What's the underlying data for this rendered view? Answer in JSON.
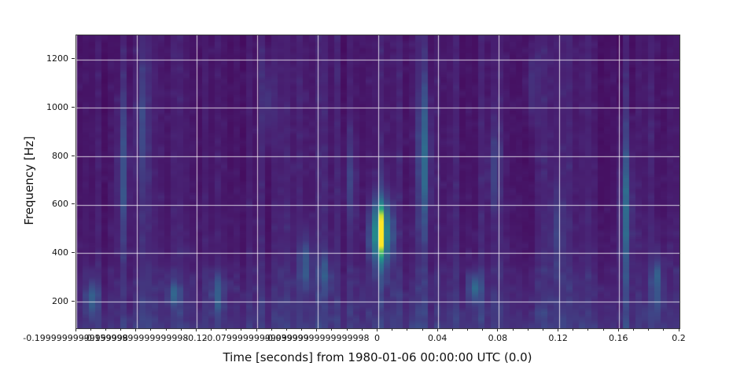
{
  "page": {
    "background": "#ffffff"
  },
  "axes_style": {
    "tick_color": "#2b2b2b",
    "spine_color": "#3b3b3b",
    "label_color": "#111111",
    "grid_color": "#ffffff",
    "grid_opacity": 0.78
  },
  "chart_data": {
    "type": "heatmap",
    "subtype": "spectrogram",
    "title": "",
    "xlabel": "Time [seconds] from 1980-01-06 00:00:00 UTC (0.0)",
    "ylabel": "Frequency [Hz]",
    "xlim": [
      -0.2,
      0.2
    ],
    "ylim": [
      90,
      1300
    ],
    "grid": true,
    "legend": "none",
    "colormap": "viridis",
    "colormap_stops": [
      "#440154",
      "#482475",
      "#3e4a89",
      "#31688e",
      "#26828e",
      "#1fa187",
      "#35b779",
      "#90d743",
      "#fde725"
    ],
    "xticks": {
      "values": [
        -0.2,
        -0.16,
        -0.12,
        -0.08,
        -0.04,
        0,
        0.04,
        0.08,
        0.12,
        0.16,
        0.2
      ],
      "labels": [
        "-0.19999999999999998",
        "-0.15999999999999998",
        "-0.12",
        "-0.07999999999999999",
        "-0.03999999999999998",
        "0",
        "0.04",
        "0.08",
        "0.12",
        "0.16",
        "0.2"
      ]
    },
    "xminor_step": 0.01,
    "yticks": {
      "values": [
        200,
        400,
        600,
        800,
        1000,
        1200
      ],
      "labels": [
        "200",
        "400",
        "600",
        "800",
        "1000",
        "1200"
      ]
    },
    "background_value": 0.05,
    "noise": {
      "seed": 12,
      "time_bins": 96,
      "freq_bins": 48,
      "base": 0.032,
      "column_variation": 0.085,
      "cell_variation": 0.055,
      "low_freq_boost": 0.095,
      "low_freq_scale_hz": 230,
      "low_freq_blob_below_hz": 340,
      "low_freq_blob": 0.05
    },
    "burst": {
      "time": 0.0,
      "peak_frequency": 487,
      "freq_lo": 360,
      "freq_hi": 640,
      "sigma_hz": 70,
      "wing_sigma_hz": 95,
      "peak_value": 1.0,
      "column_profile": [
        0.13,
        0.42,
        1.0,
        0.4,
        0.15
      ],
      "broad_sigma_hz": 150,
      "broad_value": 0.18,
      "description": "Loud short transient at t=0 s spanning ~360-640 Hz, peak (yellow) near 490 Hz"
    },
    "streaks": [
      {
        "t": -0.19,
        "f_lo": 130,
        "f_hi": 300,
        "value": 0.2
      },
      {
        "t": -0.168,
        "f_lo": 350,
        "f_hi": 1150,
        "value": 0.18
      },
      {
        "t": -0.155,
        "f_lo": 600,
        "f_hi": 1250,
        "value": 0.12
      },
      {
        "t": -0.135,
        "f_lo": 180,
        "f_hi": 290,
        "value": 0.22
      },
      {
        "t": -0.105,
        "f_lo": 150,
        "f_hi": 330,
        "value": 0.2
      },
      {
        "t": -0.075,
        "f_lo": 800,
        "f_hi": 1250,
        "value": 0.12
      },
      {
        "t": -0.05,
        "f_lo": 240,
        "f_hi": 480,
        "value": 0.2
      },
      {
        "t": -0.037,
        "f_lo": 230,
        "f_hi": 420,
        "value": 0.16
      },
      {
        "t": -0.02,
        "f_lo": 500,
        "f_hi": 900,
        "value": 0.12
      },
      {
        "t": 0.033,
        "f_lo": 450,
        "f_hi": 1150,
        "value": 0.26
      },
      {
        "t": 0.063,
        "f_lo": 180,
        "f_hi": 330,
        "value": 0.24
      },
      {
        "t": 0.078,
        "f_lo": 550,
        "f_hi": 950,
        "value": 0.13
      },
      {
        "t": 0.1,
        "f_lo": 900,
        "f_hi": 1280,
        "value": 0.12
      },
      {
        "t": 0.12,
        "f_lo": 300,
        "f_hi": 700,
        "value": 0.1
      },
      {
        "t": 0.164,
        "f_lo": 220,
        "f_hi": 950,
        "value": 0.26
      },
      {
        "t": 0.187,
        "f_lo": 130,
        "f_hi": 420,
        "value": 0.18
      }
    ]
  }
}
